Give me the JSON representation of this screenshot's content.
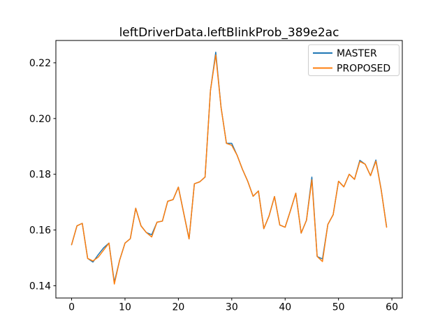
{
  "title": "leftDriverData.leftBlinkProb_389e2ac",
  "legend": {
    "entries": [
      {
        "label": "MASTER",
        "color": "#1f77b4"
      },
      {
        "label": "PROPOSED",
        "color": "#ff7f0e"
      }
    ]
  },
  "chart_data": {
    "type": "line",
    "title": "leftDriverData.leftBlinkProb_389e2ac",
    "xlabel": "",
    "ylabel": "",
    "grid": false,
    "legend_position": "upper right",
    "xlim": [
      -2.95,
      61.95
    ],
    "ylim": [
      0.1356,
      0.228
    ],
    "xticks": [
      0,
      10,
      20,
      30,
      40,
      50,
      60
    ],
    "yticks": [
      0.14,
      0.16,
      0.18,
      0.2,
      0.22
    ],
    "x": [
      0,
      1,
      2,
      3,
      4,
      5,
      6,
      7,
      8,
      9,
      10,
      11,
      12,
      13,
      14,
      15,
      16,
      17,
      18,
      19,
      20,
      21,
      22,
      23,
      24,
      25,
      26,
      27,
      28,
      29,
      30,
      31,
      32,
      33,
      34,
      35,
      36,
      37,
      38,
      39,
      40,
      41,
      42,
      43,
      44,
      45,
      46,
      47,
      48,
      49,
      50,
      51,
      52,
      53,
      54,
      55,
      56,
      57,
      58,
      59
    ],
    "series": [
      {
        "name": "MASTER",
        "color": "#1f77b4",
        "values": [
          0.1547,
          0.1615,
          0.1624,
          0.1498,
          0.1485,
          0.1512,
          0.1536,
          0.1553,
          0.1412,
          0.1492,
          0.1553,
          0.1569,
          0.1678,
          0.1615,
          0.1591,
          0.1583,
          0.1628,
          0.1632,
          0.1703,
          0.1709,
          0.1754,
          0.1661,
          0.1568,
          0.1766,
          0.1773,
          0.179,
          0.21,
          0.2238,
          0.204,
          0.1911,
          0.1911,
          0.1868,
          0.1818,
          0.1775,
          0.1721,
          0.174,
          0.1605,
          0.1651,
          0.172,
          0.1618,
          0.161,
          0.167,
          0.1732,
          0.1589,
          0.1635,
          0.179,
          0.1505,
          0.1496,
          0.162,
          0.1655,
          0.1775,
          0.1755,
          0.18,
          0.1782,
          0.185,
          0.1836,
          0.1795,
          0.1851,
          0.1744,
          0.1612
        ]
      },
      {
        "name": "PROPOSED",
        "color": "#ff7f0e",
        "values": [
          0.1547,
          0.1615,
          0.1624,
          0.1498,
          0.1489,
          0.1503,
          0.1528,
          0.1553,
          0.1406,
          0.1492,
          0.1553,
          0.1569,
          0.1678,
          0.1615,
          0.1591,
          0.1575,
          0.1628,
          0.1632,
          0.1703,
          0.1709,
          0.1754,
          0.1661,
          0.1568,
          0.1766,
          0.1773,
          0.179,
          0.21,
          0.2228,
          0.204,
          0.1911,
          0.1904,
          0.1868,
          0.1818,
          0.1775,
          0.1721,
          0.174,
          0.1605,
          0.1651,
          0.172,
          0.1618,
          0.161,
          0.167,
          0.1732,
          0.1589,
          0.1635,
          0.178,
          0.1505,
          0.1487,
          0.162,
          0.1655,
          0.1775,
          0.1755,
          0.18,
          0.1782,
          0.1846,
          0.1836,
          0.1795,
          0.1847,
          0.1744,
          0.161
        ]
      }
    ]
  }
}
